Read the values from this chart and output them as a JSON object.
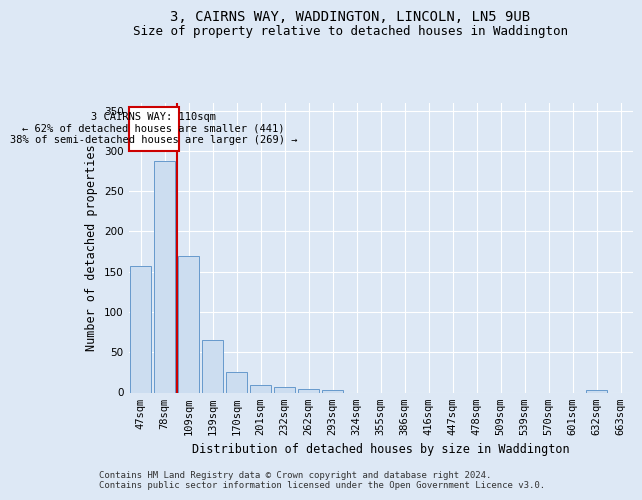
{
  "title": "3, CAIRNS WAY, WADDINGTON, LINCOLN, LN5 9UB",
  "subtitle": "Size of property relative to detached houses in Waddington",
  "xlabel": "Distribution of detached houses by size in Waddington",
  "ylabel": "Number of detached properties",
  "categories": [
    "47sqm",
    "78sqm",
    "109sqm",
    "139sqm",
    "170sqm",
    "201sqm",
    "232sqm",
    "262sqm",
    "293sqm",
    "324sqm",
    "355sqm",
    "386sqm",
    "416sqm",
    "447sqm",
    "478sqm",
    "509sqm",
    "539sqm",
    "570sqm",
    "601sqm",
    "632sqm",
    "663sqm"
  ],
  "values": [
    157,
    287,
    170,
    65,
    25,
    9,
    7,
    4,
    3,
    0,
    0,
    0,
    0,
    0,
    0,
    0,
    0,
    0,
    0,
    3,
    0
  ],
  "bar_color": "#ccddf0",
  "bar_edge_color": "#6699cc",
  "vline_x": 1.5,
  "vline_color": "#cc0000",
  "annotation_text": "3 CAIRNS WAY: 110sqm\n← 62% of detached houses are smaller (441)\n38% of semi-detached houses are larger (269) →",
  "annotation_box_facecolor": "#ffffff",
  "annotation_box_edgecolor": "#cc0000",
  "ylim": [
    0,
    360
  ],
  "yticks": [
    0,
    50,
    100,
    150,
    200,
    250,
    300,
    350
  ],
  "background_color": "#dde8f5",
  "plot_bg_color": "#dde8f5",
  "footer_text": "Contains HM Land Registry data © Crown copyright and database right 2024.\nContains public sector information licensed under the Open Government Licence v3.0.",
  "title_fontsize": 10,
  "subtitle_fontsize": 9,
  "xlabel_fontsize": 8.5,
  "ylabel_fontsize": 8.5,
  "tick_fontsize": 7.5,
  "footer_fontsize": 6.5,
  "annotation_fontsize": 7.5
}
